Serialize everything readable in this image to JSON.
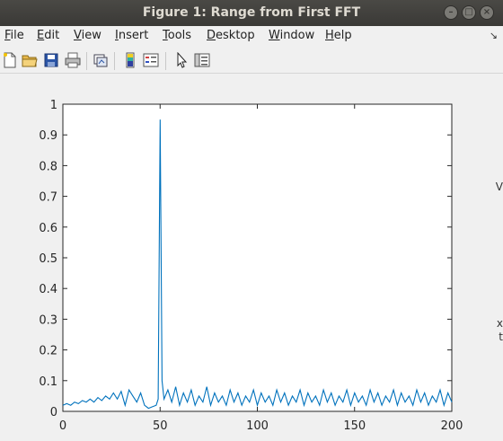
{
  "window": {
    "title": "Figure 1: Range from First FFT",
    "controls": {
      "minimize": "–",
      "maximize": "□",
      "close": "×"
    }
  },
  "menubar": {
    "items": [
      {
        "label": "File",
        "accel": "F"
      },
      {
        "label": "Edit",
        "accel": "E"
      },
      {
        "label": "View",
        "accel": "V"
      },
      {
        "label": "Insert",
        "accel": "I"
      },
      {
        "label": "Tools",
        "accel": "T"
      },
      {
        "label": "Desktop",
        "accel": "D"
      },
      {
        "label": "Window",
        "accel": "W"
      },
      {
        "label": "Help",
        "accel": "H"
      }
    ],
    "corner_glyph": "↘"
  },
  "toolbar": {
    "icons": [
      "new-figure-icon",
      "open-file-icon",
      "save-icon",
      "print-icon",
      "link-plot-icon",
      "insert-colorbar-icon",
      "insert-legend-icon",
      "pointer-icon",
      "property-inspector-icon"
    ]
  },
  "right_edge_glyphs": [
    "V",
    "x",
    "t"
  ],
  "chart_data": {
    "type": "line",
    "title": "",
    "xlabel": "",
    "ylabel": "",
    "xlim": [
      0,
      200
    ],
    "ylim": [
      0,
      1
    ],
    "xticks": [
      "0",
      "50",
      "100",
      "150",
      "200"
    ],
    "yticks": [
      "0",
      "0.1",
      "0.2",
      "0.3",
      "0.4",
      "0.5",
      "0.6",
      "0.7",
      "0.8",
      "0.9",
      "1"
    ],
    "grid": false,
    "color": "#0072bd",
    "series": [
      {
        "x": [
          0,
          2,
          4,
          6,
          8,
          10,
          12,
          14,
          16,
          18,
          20,
          22,
          24,
          26,
          28,
          30,
          32,
          34,
          36,
          38,
          40,
          42,
          44,
          46,
          48,
          49,
          50,
          51,
          52,
          54,
          56,
          58,
          60,
          62,
          64,
          66,
          68,
          70,
          72,
          74,
          76,
          78,
          80,
          82,
          84,
          86,
          88,
          90,
          92,
          94,
          96,
          98,
          100,
          102,
          104,
          106,
          108,
          110,
          112,
          114,
          116,
          118,
          120,
          122,
          124,
          126,
          128,
          130,
          132,
          134,
          136,
          138,
          140,
          142,
          144,
          146,
          148,
          150,
          152,
          154,
          156,
          158,
          160,
          162,
          164,
          166,
          168,
          170,
          172,
          174,
          176,
          178,
          180,
          182,
          184,
          186,
          188,
          190,
          192,
          194,
          196,
          198,
          200
        ],
        "values": [
          0.02,
          0.025,
          0.02,
          0.03,
          0.025,
          0.035,
          0.03,
          0.04,
          0.03,
          0.045,
          0.035,
          0.05,
          0.04,
          0.06,
          0.04,
          0.065,
          0.02,
          0.07,
          0.05,
          0.03,
          0.06,
          0.02,
          0.01,
          0.015,
          0.02,
          0.04,
          0.95,
          0.1,
          0.04,
          0.07,
          0.03,
          0.08,
          0.02,
          0.06,
          0.03,
          0.07,
          0.02,
          0.05,
          0.03,
          0.08,
          0.02,
          0.06,
          0.03,
          0.05,
          0.02,
          0.07,
          0.03,
          0.06,
          0.02,
          0.05,
          0.03,
          0.07,
          0.02,
          0.06,
          0.03,
          0.05,
          0.02,
          0.07,
          0.03,
          0.06,
          0.02,
          0.05,
          0.03,
          0.07,
          0.02,
          0.06,
          0.03,
          0.05,
          0.02,
          0.07,
          0.03,
          0.06,
          0.02,
          0.05,
          0.03,
          0.07,
          0.02,
          0.06,
          0.03,
          0.05,
          0.02,
          0.07,
          0.03,
          0.06,
          0.02,
          0.05,
          0.03,
          0.07,
          0.02,
          0.06,
          0.03,
          0.05,
          0.02,
          0.07,
          0.03,
          0.06,
          0.02,
          0.05,
          0.03,
          0.07,
          0.02,
          0.06,
          0.03
        ]
      }
    ]
  }
}
